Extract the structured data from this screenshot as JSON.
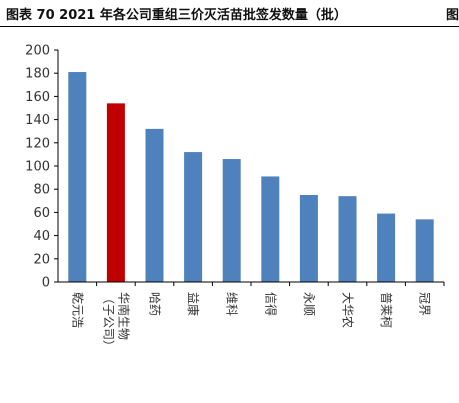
{
  "header": {
    "title": "图表  70 2021 年各公司重组三价灭活苗批签发数量（批）",
    "continuation": "图"
  },
  "chart_data": {
    "type": "bar",
    "categories": [
      "乾元浩",
      "华南生物（子公司）",
      "哈药",
      "益康",
      "维科",
      "信得",
      "永顺",
      "大华农",
      "普莱柯",
      "冠界"
    ],
    "category_lines": [
      [
        "乾元浩"
      ],
      [
        "华南生物",
        "（子公司）"
      ],
      [
        "哈药"
      ],
      [
        "益康"
      ],
      [
        "维科"
      ],
      [
        "信得"
      ],
      [
        "永顺"
      ],
      [
        "大华农"
      ],
      [
        "普莱柯"
      ],
      [
        "冠界"
      ]
    ],
    "values": [
      181,
      154,
      132,
      112,
      106,
      91,
      75,
      74,
      59,
      54
    ],
    "highlight_index": 1,
    "ylim": [
      0,
      200
    ],
    "yticks": [
      "0",
      "20",
      "40",
      "60",
      "80",
      "100",
      "120",
      "140",
      "160",
      "180",
      "200"
    ],
    "grid": false,
    "legend": "none",
    "colors": {
      "bar": "#4F81BD",
      "highlight": "#C00000",
      "axis": "#000000"
    }
  }
}
